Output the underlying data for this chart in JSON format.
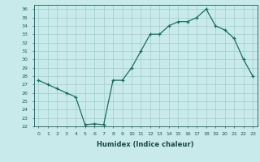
{
  "x": [
    0,
    1,
    2,
    3,
    4,
    5,
    6,
    7,
    8,
    9,
    10,
    11,
    12,
    13,
    14,
    15,
    16,
    17,
    18,
    19,
    20,
    21,
    22,
    23
  ],
  "y": [
    27.5,
    27.0,
    26.5,
    26.0,
    25.5,
    22.2,
    22.3,
    22.2,
    27.5,
    27.5,
    29.0,
    31.0,
    33.0,
    33.0,
    34.0,
    34.5,
    34.5,
    35.0,
    36.0,
    34.0,
    33.5,
    32.5,
    30.0,
    28.0
  ],
  "xlabel": "Humidex (Indice chaleur)",
  "xlim": [
    -0.5,
    23.5
  ],
  "ylim": [
    22,
    36.5
  ],
  "yticks": [
    22,
    23,
    24,
    25,
    26,
    27,
    28,
    29,
    30,
    31,
    32,
    33,
    34,
    35,
    36
  ],
  "xticks": [
    0,
    1,
    2,
    3,
    4,
    5,
    6,
    7,
    8,
    9,
    10,
    11,
    12,
    13,
    14,
    15,
    16,
    17,
    18,
    19,
    20,
    21,
    22,
    23
  ],
  "line_color": "#1a6e5e",
  "bg_color": "#c8eaea",
  "grid_color": "#a0cccc",
  "tick_color": "#1a5a5a",
  "xlabel_color": "#1a4a4a"
}
